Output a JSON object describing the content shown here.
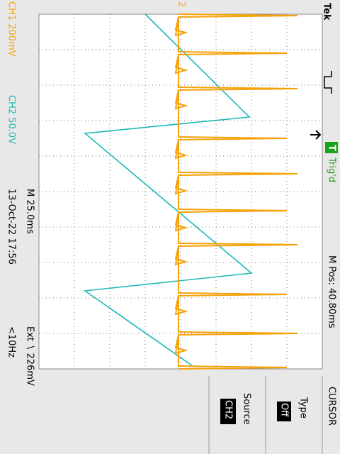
{
  "screen": {
    "brand": "Tek",
    "ch1": "CH1 200mV",
    "ch2": "CH2 50.0V",
    "timebase": "M 25.0ms",
    "datetime": "13-Oct-22 17:56",
    "trigger_source": "Ext ∖ 226mV",
    "trigger_freq": "<10Hz",
    "trigger_flag": "T",
    "trigger_state": "Trig'd",
    "position": "M Pos: 40.80ms",
    "ch2_marker": "2"
  },
  "menu": {
    "title": "CURSOR",
    "type_label": "Type",
    "type_value": "Off",
    "source_label": "Source",
    "source_value": "CH2"
  }
}
